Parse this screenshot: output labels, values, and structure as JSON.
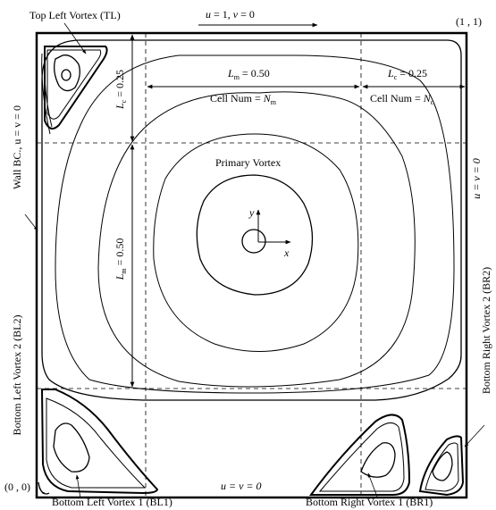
{
  "lid": {
    "u": "u",
    "u_val": " = 1, ",
    "v": "v",
    "v_val": " = 0"
  },
  "corners": {
    "top_right": "(1 , 1)",
    "bottom_left": "(0 , 0)"
  },
  "bottom_bc": "u = v = 0",
  "right_bc": "u = v = 0",
  "left_bc": "Wall BC., u = v = 0",
  "vortices": {
    "tl": "Top Left Vortex (TL)",
    "primary": "Primary Vortex",
    "bl1": "Bottom Left Vortex 1 (BL1)",
    "bl2": "Bottom Left Vortex 2 (BL2)",
    "br1": "Bottom Right Vortex 1 (BR1)",
    "br2": "Bottom Right Vortex 2 (BR2)"
  },
  "dims": {
    "lm_h": {
      "sym": "L",
      "sub": "m",
      "val": " = 0.50"
    },
    "lc_h": {
      "sym": "L",
      "sub": "c",
      "val": " = 0.25"
    },
    "lc_v": {
      "sym": "L",
      "sub": "c",
      "val": " = 0.25"
    },
    "lm_v": {
      "sym": "L",
      "sub": "m",
      "val": " = 0.50"
    }
  },
  "cells": {
    "m": {
      "prefix": "Cell Num = ",
      "sym": "N",
      "sub": "m"
    },
    "c": {
      "prefix": "Cell Num = ",
      "sym": "N",
      "sub": "c"
    }
  },
  "axes": {
    "x": "x",
    "y": "y"
  }
}
